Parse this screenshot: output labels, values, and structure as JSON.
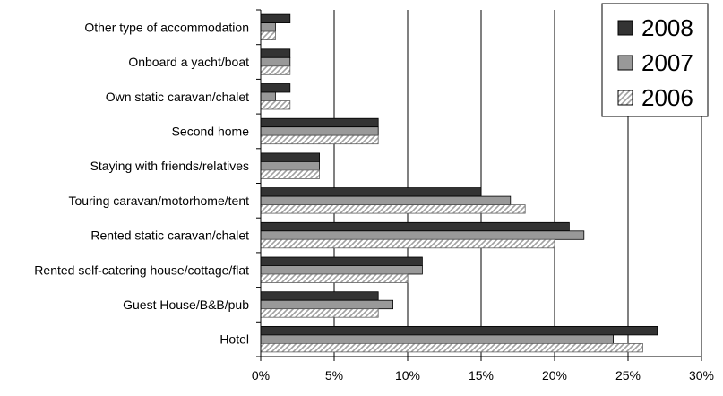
{
  "chart_data": {
    "type": "bar",
    "orientation": "horizontal",
    "categories": [
      "Other type of accommodation",
      "Onboard a yacht/boat",
      "Own static caravan/chalet",
      "Second home",
      "Staying with friends/relatives",
      "Touring caravan/motorhome/tent",
      "Rented static caravan/chalet",
      "Rented self-catering house/cottage/flat",
      "Guest House/B&B/pub",
      "Hotel"
    ],
    "series": [
      {
        "name": "2008",
        "values": [
          2,
          2,
          2,
          8,
          4,
          15,
          21,
          11,
          8,
          27
        ],
        "color": "#333333",
        "pattern": "solid"
      },
      {
        "name": "2007",
        "values": [
          1,
          2,
          1,
          8,
          4,
          17,
          22,
          11,
          9,
          24
        ],
        "color": "#999999",
        "pattern": "solid"
      },
      {
        "name": "2006",
        "values": [
          1,
          2,
          2,
          8,
          4,
          18,
          20,
          10,
          8,
          26
        ],
        "color": "#ffffff",
        "pattern": "diagonal-hatch"
      }
    ],
    "xlim": [
      0,
      30
    ],
    "xticks": [
      "0%",
      "5%",
      "10%",
      "15%",
      "20%",
      "25%",
      "30%"
    ],
    "grid": "vertical",
    "legend": "top-right",
    "title": "",
    "xlabel": "",
    "ylabel": ""
  }
}
